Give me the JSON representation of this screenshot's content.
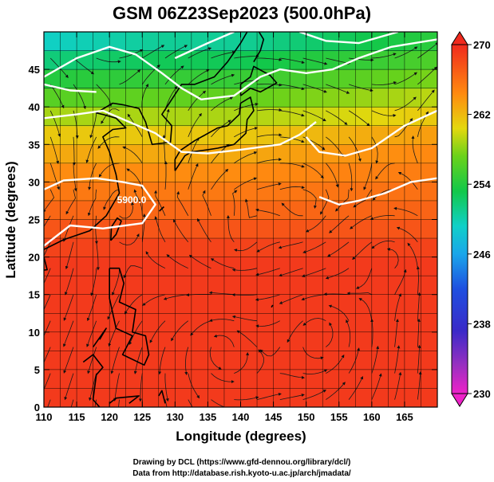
{
  "chart_data": {
    "type": "heatmap",
    "title": "GSM 06Z23Sep2023 (500.0hPa)",
    "xlabel": "Longitude (degrees)",
    "ylabel": "Latitude  (degrees)",
    "xlim": [
      110,
      170
    ],
    "ylim": [
      0,
      50
    ],
    "xticks": [
      110,
      115,
      120,
      125,
      130,
      135,
      140,
      145,
      150,
      155,
      160,
      165
    ],
    "xtick_labels": [
      "110",
      "115",
      "120",
      "125",
      "130",
      "135",
      "140",
      "145",
      "150",
      "155",
      "160",
      "165"
    ],
    "yticks": [
      0,
      5,
      10,
      15,
      20,
      25,
      30,
      35,
      40,
      45
    ],
    "ytick_labels": [
      "0",
      "5",
      "10",
      "15",
      "20",
      "25",
      "30",
      "35",
      "40",
      "45"
    ],
    "colorbar": {
      "min": 230,
      "max": 270,
      "ticks": [
        230,
        238,
        246,
        254,
        262,
        270
      ],
      "tick_labels": [
        "230",
        "238",
        "246",
        "254",
        "262",
        "270"
      ]
    },
    "contour_label": "5900.0",
    "overlays": [
      "temperature shading",
      "geopotential height contours",
      "wind streamlines",
      "coastlines",
      "grid"
    ]
  },
  "colors": {
    "grid": "#000000",
    "contour": "#ffffff",
    "coast": "#000000",
    "streamline": "#1a1a1a"
  },
  "credits": {
    "line1": "Drawing by DCL (https://www.gfd-dennou.org/library/dcl/)",
    "line2": "Data from http://database.rish.kyoto-u.ac.jp/arch/jmadata/"
  }
}
